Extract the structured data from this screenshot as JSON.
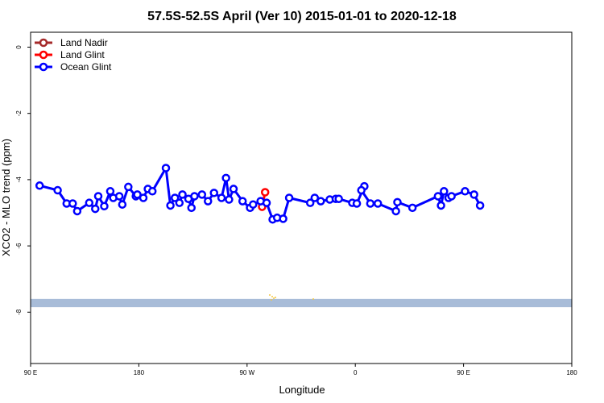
{
  "chart_data": {
    "type": "line",
    "title": "57.5S-52.5S April (Ver 10)   2015-01-01 to 2020-12-18",
    "xlabel": "Longitude",
    "ylabel": "XCO2 - MLO trend (ppm)",
    "xlim": [
      -90,
      270
    ],
    "ylim": [
      -9.55,
      0.45
    ],
    "x_ticks": [
      {
        "value": -90,
        "label": "90 E"
      },
      {
        "value": -18,
        "label": "180"
      },
      {
        "value": 54,
        "label": "90 W"
      },
      {
        "value": 126,
        "label": "0"
      },
      {
        "value": 198,
        "label": "90 E"
      },
      {
        "value": 270,
        "label": "180"
      }
    ],
    "y_ticks": [
      {
        "value": 0,
        "label": "0"
      },
      {
        "value": -2,
        "label": "-2"
      },
      {
        "value": -4,
        "label": "-4"
      },
      {
        "value": -6,
        "label": "-6"
      },
      {
        "value": -8,
        "label": "-8"
      }
    ],
    "legend_position": "top-left",
    "series": [
      {
        "name": "Land Nadir",
        "color": "#a52a2a",
        "x": [],
        "y": []
      },
      {
        "name": "Land Glint",
        "color": "#ff0000",
        "x": [
          64,
          66
        ],
        "y": [
          -4.82,
          -4.38
        ]
      },
      {
        "name": "Ocean Glint",
        "color": "#0000ff",
        "x": [
          -84,
          -72,
          -66,
          -62,
          -59,
          -51,
          -47,
          -45,
          -41,
          -37,
          -35,
          -31,
          -29,
          -25,
          -20,
          -19,
          -15,
          -12,
          -9,
          0,
          3,
          6,
          9,
          11,
          15,
          17,
          19,
          24,
          28,
          32,
          37,
          40,
          42,
          45,
          51,
          56,
          58,
          63,
          67,
          71,
          74,
          78,
          82,
          96,
          99,
          103,
          109,
          113,
          115,
          124,
          127,
          132,
          130,
          136,
          141,
          153,
          154,
          164,
          181,
          183,
          185,
          188,
          190,
          199,
          205,
          209
        ],
        "y": [
          -4.18,
          -4.32,
          -4.72,
          -4.72,
          -4.95,
          -4.7,
          -4.88,
          -4.5,
          -4.8,
          -4.35,
          -4.55,
          -4.5,
          -4.75,
          -4.22,
          -4.5,
          -4.45,
          -4.55,
          -4.28,
          -4.35,
          -3.65,
          -4.78,
          -4.55,
          -4.7,
          -4.45,
          -4.58,
          -4.85,
          -4.5,
          -4.45,
          -4.65,
          -4.4,
          -4.55,
          -3.95,
          -4.6,
          -4.28,
          -4.65,
          -4.85,
          -4.75,
          -4.65,
          -4.7,
          -5.2,
          -5.15,
          -5.18,
          -4.55,
          -4.7,
          -4.55,
          -4.65,
          -4.6,
          -4.58,
          -4.58,
          -4.7,
          -4.72,
          -4.2,
          -4.32,
          -4.72,
          -4.72,
          -4.95,
          -4.68,
          -4.85,
          -4.5,
          -4.78,
          -4.35,
          -4.55,
          -4.5,
          -4.35,
          -4.45,
          -4.78
        ]
      }
    ],
    "land_band": {
      "y_range": [
        -7.6,
        -7.85
      ],
      "color": "#a8bcd8"
    }
  }
}
